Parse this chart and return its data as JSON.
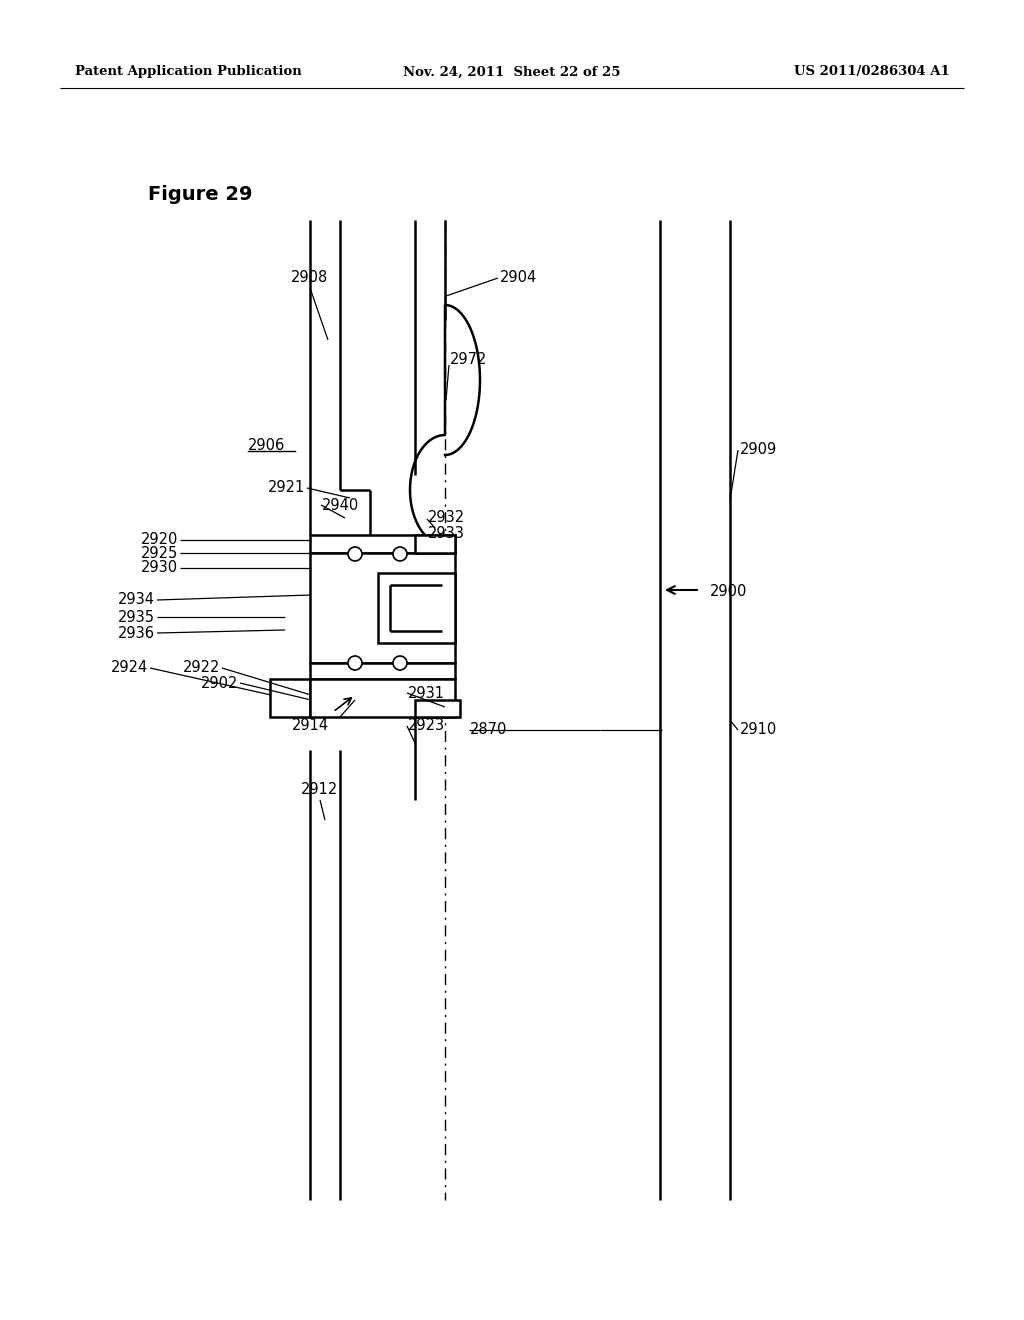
{
  "header_left": "Patent Application Publication",
  "header_mid": "Nov. 24, 2011  Sheet 22 of 25",
  "header_right": "US 2011/0286304 A1",
  "bg_color": "#ffffff",
  "fig_label": "Figure 29",
  "lw_main": 1.8,
  "lw_thin": 1.0,
  "lw_label": 0.9,
  "fs_label": 10.5,
  "fs_header": 9.5
}
